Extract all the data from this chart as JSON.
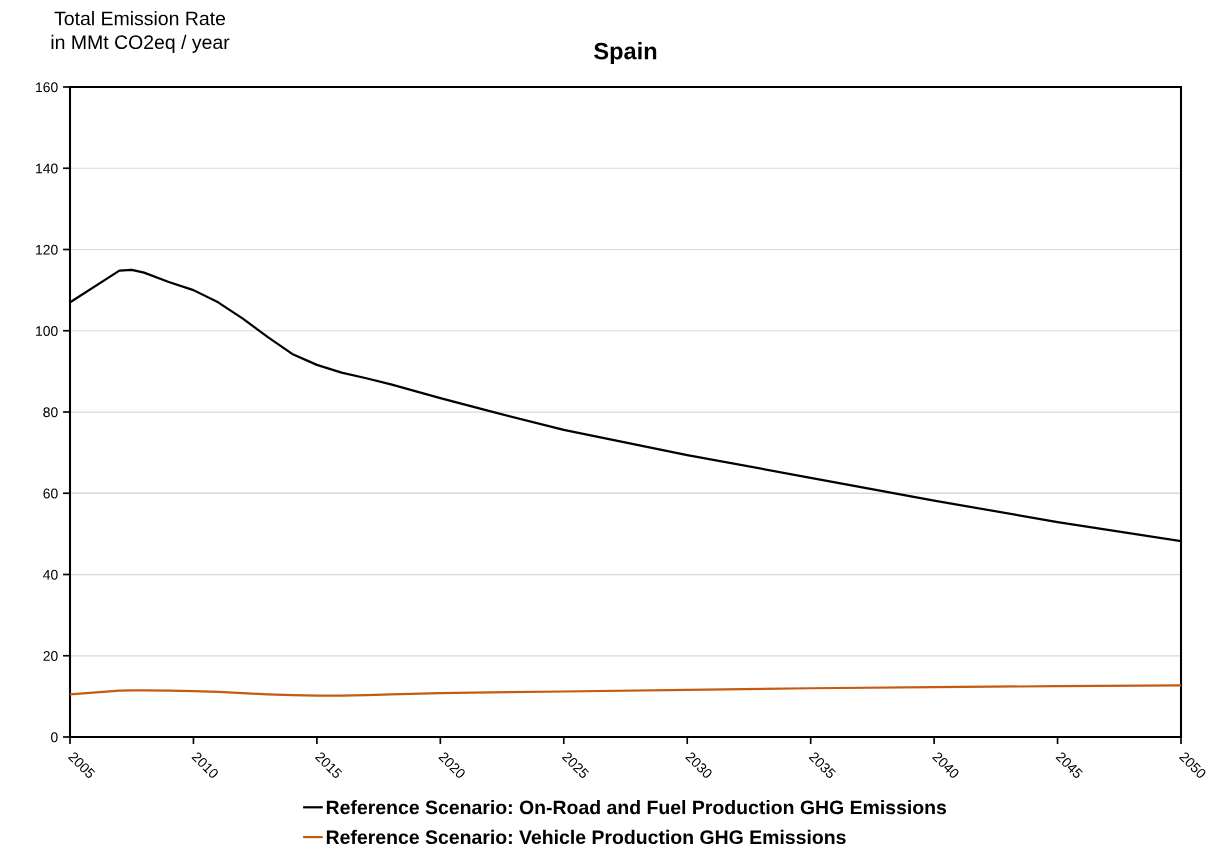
{
  "chart_data": {
    "type": "line",
    "title": "Spain",
    "ylabel": "Total Emission Rate\nin MMt CO2eq / year",
    "x": [
      2005,
      2007,
      2007.5,
      2008,
      2009,
      2010,
      2011,
      2012,
      2013,
      2014,
      2015,
      2016,
      2017,
      2018,
      2020,
      2022,
      2025,
      2030,
      2035,
      2040,
      2045,
      2050
    ],
    "series": [
      {
        "name": "Reference Scenario: On-Road and Fuel Production GHG Emissions",
        "color": "#000000",
        "values": [
          107,
          114.8,
          115,
          114.3,
          112,
          110,
          107,
          103,
          98.5,
          94.3,
          91.6,
          89.7,
          88.3,
          86.8,
          83.4,
          80.2,
          75.6,
          69.4,
          63.8,
          58.2,
          52.9,
          48.2
        ]
      },
      {
        "name": "Reference Scenario: Vehicle Production GHG Emissions",
        "color": "#c55a11",
        "values": [
          10.5,
          11.4,
          11.5,
          11.5,
          11.4,
          11.3,
          11.1,
          10.8,
          10.5,
          10.3,
          10.2,
          10.2,
          10.3,
          10.5,
          10.8,
          11.0,
          11.2,
          11.6,
          12.0,
          12.3,
          12.5,
          12.7
        ]
      }
    ],
    "xlim": [
      2005,
      2050
    ],
    "xticks": [
      2005,
      2010,
      2015,
      2020,
      2025,
      2030,
      2035,
      2040,
      2045,
      2050
    ],
    "ylim": [
      0,
      160
    ],
    "yticks": [
      0,
      20,
      40,
      60,
      80,
      100,
      120,
      140,
      160
    ],
    "grid": "y",
    "legend": "bottom",
    "marker": "none",
    "line_style": "solid"
  }
}
